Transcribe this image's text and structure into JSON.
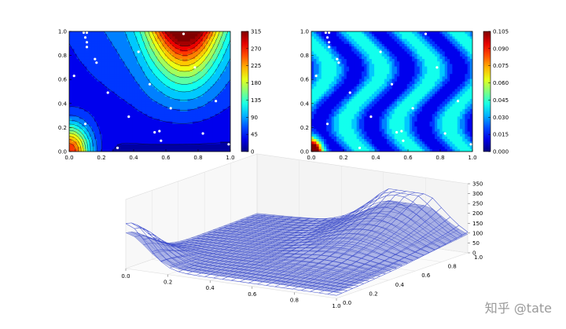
{
  "chart_data": [
    {
      "type": "heatmap",
      "subtype": "filled-contour-with-lines",
      "title": "",
      "xlabel": "",
      "ylabel": "",
      "xlim": [
        0,
        1
      ],
      "ylim": [
        0,
        1
      ],
      "x_ticks": [
        "0.0",
        "0.2",
        "0.4",
        "0.6",
        "0.8",
        "1.0"
      ],
      "y_ticks": [
        "0.0",
        "0.2",
        "0.4",
        "0.6",
        "0.8",
        "1.0"
      ],
      "colorbar_range": [
        0,
        315
      ],
      "colorbar_ticks": [
        "0",
        "45",
        "90",
        "135",
        "180",
        "225",
        "270",
        "315"
      ],
      "colormap": [
        "#00007f",
        "#0000ff",
        "#0080ff",
        "#00e5ff",
        "#7dff7a",
        "#ffea00",
        "#ff5000",
        "#7f0000"
      ],
      "sample_points": [
        {
          "x": 0.09,
          "y": 0.99
        },
        {
          "x": 0.11,
          "y": 0.99
        },
        {
          "x": 0.1,
          "y": 0.95
        },
        {
          "x": 0.11,
          "y": 0.91
        },
        {
          "x": 0.11,
          "y": 0.87
        },
        {
          "x": 0.16,
          "y": 0.77
        },
        {
          "x": 0.17,
          "y": 0.74
        },
        {
          "x": 0.03,
          "y": 0.63
        },
        {
          "x": 0.24,
          "y": 0.49
        },
        {
          "x": 0.1,
          "y": 0.23
        },
        {
          "x": 0.3,
          "y": 0.03
        },
        {
          "x": 0.43,
          "y": 0.83
        },
        {
          "x": 0.5,
          "y": 0.56
        },
        {
          "x": 0.37,
          "y": 0.29
        },
        {
          "x": 0.53,
          "y": 0.16
        },
        {
          "x": 0.56,
          "y": 0.17
        },
        {
          "x": 0.57,
          "y": 0.09
        },
        {
          "x": 0.63,
          "y": 0.36
        },
        {
          "x": 0.71,
          "y": 0.98
        },
        {
          "x": 0.78,
          "y": 0.7
        },
        {
          "x": 0.83,
          "y": 0.15
        },
        {
          "x": 0.91,
          "y": 0.42
        },
        {
          "x": 0.99,
          "y": 0.06
        }
      ]
    },
    {
      "type": "heatmap",
      "subtype": "filled-contour",
      "title": "",
      "xlabel": "",
      "ylabel": "",
      "xlim": [
        0,
        1
      ],
      "ylim": [
        0,
        1
      ],
      "x_ticks": [
        "0.0",
        "0.2",
        "0.4",
        "0.6",
        "0.8",
        "1.0"
      ],
      "y_ticks": [
        "0.0",
        "0.2",
        "0.4",
        "0.6",
        "0.8",
        "1.0"
      ],
      "colorbar_range": [
        0,
        0.105
      ],
      "colorbar_ticks": [
        "0.000",
        "0.015",
        "0.030",
        "0.045",
        "0.060",
        "0.075",
        "0.090",
        "0.105"
      ],
      "sample_points_shared_with_chart": 0
    },
    {
      "type": "surface3d",
      "subtype": "wireframe-and-surface",
      "xlim": [
        0,
        1
      ],
      "ylim": [
        0,
        1
      ],
      "zlim": [
        0,
        350
      ],
      "x_ticks": [
        "0.0",
        "0.2",
        "0.4",
        "0.6",
        "0.8",
        "1.0"
      ],
      "y_ticks": [
        "0.0",
        "0.2",
        "0.4",
        "0.6",
        "0.8",
        "1.0"
      ],
      "z_ticks": [
        "0",
        "50",
        "100",
        "150",
        "200",
        "250",
        "300",
        "350"
      ],
      "wireframe_color": "#3344cc",
      "surface_color": "#6a78d8"
    }
  ],
  "watermark": "知乎 @tate"
}
